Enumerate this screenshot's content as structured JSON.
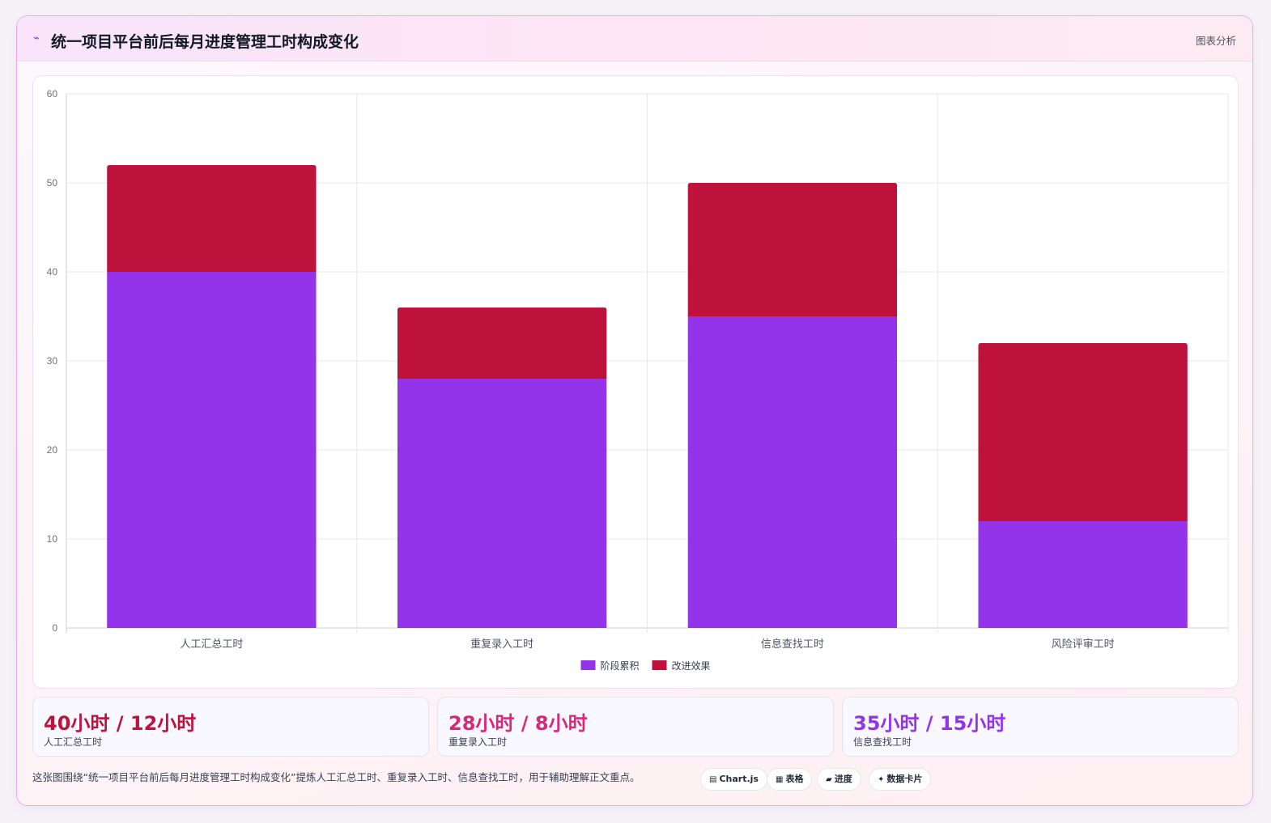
{
  "header": {
    "title_icon": "chart-line-icon",
    "title": "统一项目平台前后每月进度管理工时构成变化",
    "tag": "图表分析"
  },
  "chart_data": {
    "type": "bar",
    "stacked": true,
    "categories": [
      "人工汇总工时",
      "重复录入工时",
      "信息查找工时",
      "风险评审工时"
    ],
    "series": [
      {
        "name": "阶段累积",
        "color": "#9333ea",
        "values": [
          40,
          28,
          35,
          12
        ]
      },
      {
        "name": "改进效果",
        "color": "#be123c",
        "values": [
          12,
          8,
          15,
          20
        ]
      }
    ],
    "ylim": [
      0,
      60
    ],
    "yticks": [
      0,
      10,
      20,
      30,
      40,
      50,
      60
    ],
    "grid": true,
    "legend": "bottom-center"
  },
  "stats": [
    {
      "value": "40小时 / 12小时",
      "label": "人工汇总工时",
      "color": "#be123c"
    },
    {
      "value": "28小时 / 8小时",
      "label": "重复录入工时",
      "color": "#db2777"
    },
    {
      "value": "35小时 / 15小时",
      "label": "信息查找工时",
      "color": "#9333ea"
    }
  ],
  "caption": "这张图围绕“统一项目平台前后每月进度管理工时构成变化”提炼人工汇总工时、重复录入工时、信息查找工时，用于辅助理解正文重点。",
  "chips": [
    {
      "icon": "chart-icon",
      "glyph": "▤",
      "label": "Chart.js"
    },
    {
      "icon": "table-icon",
      "glyph": "▦",
      "label": "表格"
    },
    {
      "icon": "progress-icon",
      "glyph": "▰",
      "label": "进度"
    },
    {
      "icon": "sparkle-icon",
      "glyph": "✦",
      "label": "数据卡片"
    }
  ]
}
